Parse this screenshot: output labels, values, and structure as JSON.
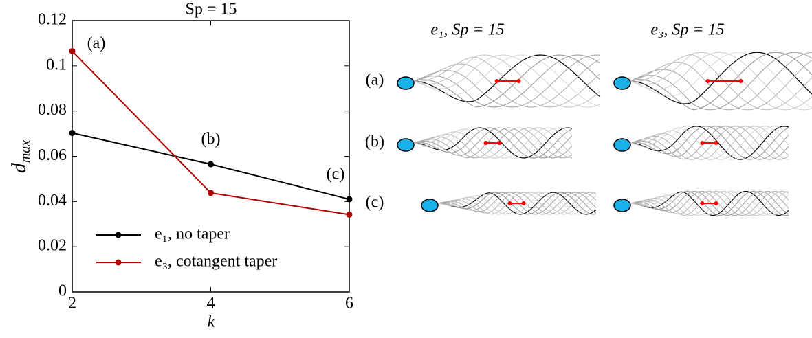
{
  "chart_data": {
    "type": "line",
    "title": "Sp = 15",
    "xlabel": "k",
    "ylabel": {
      "base": "d",
      "sub": "max"
    },
    "x": [
      2,
      4,
      6
    ],
    "series": [
      {
        "name": "e₁, no taper",
        "color": "#000000",
        "values": [
          0.0703,
          0.0565,
          0.041
        ]
      },
      {
        "name": "e₃, cotangent taper",
        "color": "#b00000",
        "values": [
          0.1065,
          0.0438,
          0.0342
        ]
      }
    ],
    "xlim": [
      2,
      6
    ],
    "ylim": [
      0,
      0.12
    ],
    "xticks": [
      2,
      4,
      6
    ],
    "yticks": [
      0,
      0.02,
      0.04,
      0.06,
      0.08,
      0.1,
      0.12
    ],
    "legend": "lower left",
    "annotations": [
      "(a)",
      "(b)",
      "(c)"
    ]
  },
  "panels": {
    "titles": [
      "e₁, Sp = 15",
      "e₃, Sp = 15"
    ],
    "rows": [
      "(a)",
      "(b)",
      "(c)"
    ]
  }
}
